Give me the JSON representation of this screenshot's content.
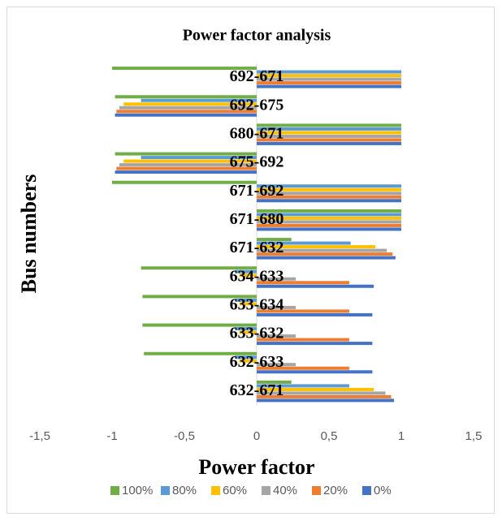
{
  "chart_data": {
    "type": "hbar",
    "title": "Power factor analysis",
    "x_label": "Power factor",
    "y_label": "Bus numbers",
    "categories": [
      "632-671",
      "632-633",
      "633-632",
      "633-634",
      "634-633",
      "671-632",
      "671-680",
      "671-692",
      "675-692",
      "680-671",
      "692-675",
      "692-671"
    ],
    "series": [
      {
        "name": "0%",
        "color": "#4472c4",
        "values": [
          0.95,
          0.8,
          0.8,
          0.8,
          0.81,
          0.96,
          1,
          1,
          -0.98,
          1,
          -0.98,
          1
        ]
      },
      {
        "name": "20%",
        "color": "#ed7d31",
        "values": [
          0.93,
          0.64,
          0.64,
          0.64,
          0.64,
          0.94,
          1,
          1,
          -0.97,
          1,
          -0.97,
          1
        ]
      },
      {
        "name": "40%",
        "color": "#a5a5a5",
        "values": [
          0.89,
          0.27,
          0.27,
          0.27,
          0.27,
          0.9,
          1,
          1,
          -0.95,
          1,
          -0.95,
          1
        ]
      },
      {
        "name": "60%",
        "color": "#ffc000",
        "values": [
          0.81,
          -0.12,
          -0.12,
          -0.12,
          -0.12,
          0.82,
          1,
          1,
          -0.92,
          1,
          -0.92,
          1
        ]
      },
      {
        "name": "80%",
        "color": "#5b9bd5",
        "values": [
          0.64,
          -0.15,
          -0.15,
          -0.15,
          -0.15,
          0.65,
          1,
          1,
          -0.8,
          1,
          -0.8,
          1
        ]
      },
      {
        "name": "100%",
        "color": "#70ad47",
        "values": [
          0.24,
          -0.78,
          -0.79,
          -0.79,
          -0.8,
          0.24,
          1,
          -1,
          -0.98,
          1,
          -0.98,
          -1
        ]
      }
    ],
    "xlim": [
      -1.5,
      1.5
    ],
    "xticks": [
      {
        "value": -1.5,
        "label": "-1,5"
      },
      -1,
      {
        "value": -0.5,
        "label": "-0,5"
      },
      0,
      {
        "value": 0.5,
        "label": "0,5"
      },
      1,
      {
        "value": 1.5,
        "label": "1,5"
      }
    ],
    "grid": false
  }
}
